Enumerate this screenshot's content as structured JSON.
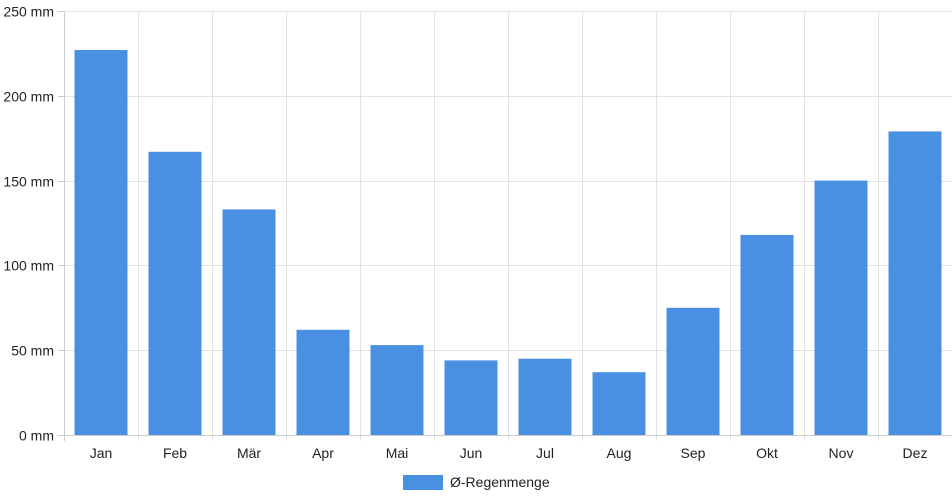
{
  "chart_data": {
    "type": "bar",
    "categories": [
      "Jan",
      "Feb",
      "Mär",
      "Apr",
      "Mai",
      "Jun",
      "Jul",
      "Aug",
      "Sep",
      "Okt",
      "Nov",
      "Dez"
    ],
    "series": [
      {
        "name": "Ø-Regenmenge",
        "color": "#4a90e2",
        "values": [
          227,
          167,
          133,
          62,
          53,
          44,
          45,
          37,
          75,
          118,
          150,
          179
        ]
      }
    ],
    "ylim": [
      0,
      250
    ],
    "yticks": [
      0,
      50,
      100,
      150,
      200,
      250
    ],
    "ytick_labels": [
      "0 mm",
      "50 mm",
      "100 mm",
      "150 mm",
      "200 mm",
      "250 mm"
    ],
    "title": "",
    "xlabel": "",
    "ylabel": "",
    "grid": true,
    "legend_position": "bottom-center"
  }
}
